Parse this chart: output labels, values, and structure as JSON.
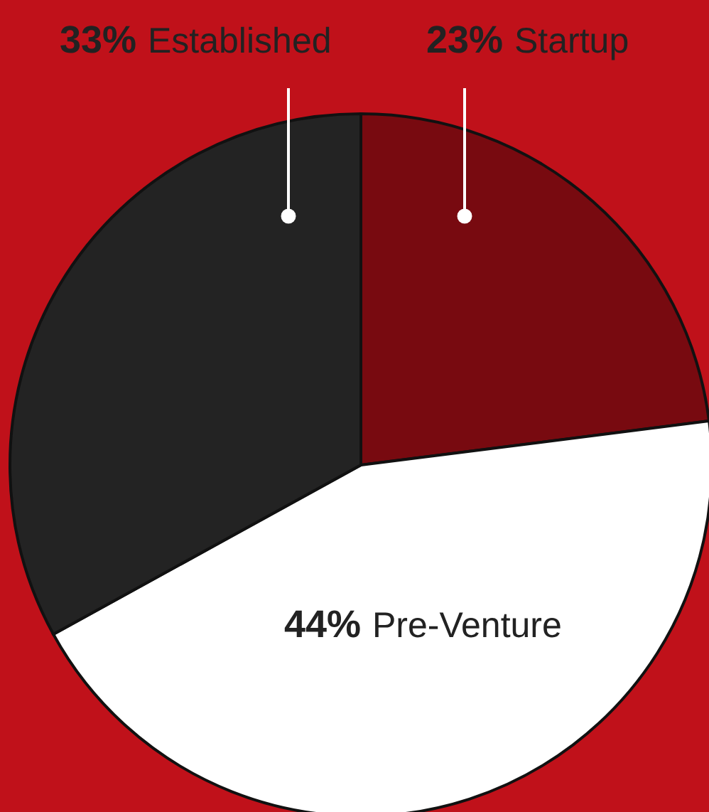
{
  "chart_data": {
    "type": "pie",
    "categories": [
      "Startup",
      "Pre-Venture",
      "Established"
    ],
    "values": [
      23,
      44,
      33
    ],
    "colors": [
      "#780a10",
      "#ffffff",
      "#232323"
    ],
    "value_labels": [
      "23%",
      "44%",
      "33%"
    ]
  }
}
